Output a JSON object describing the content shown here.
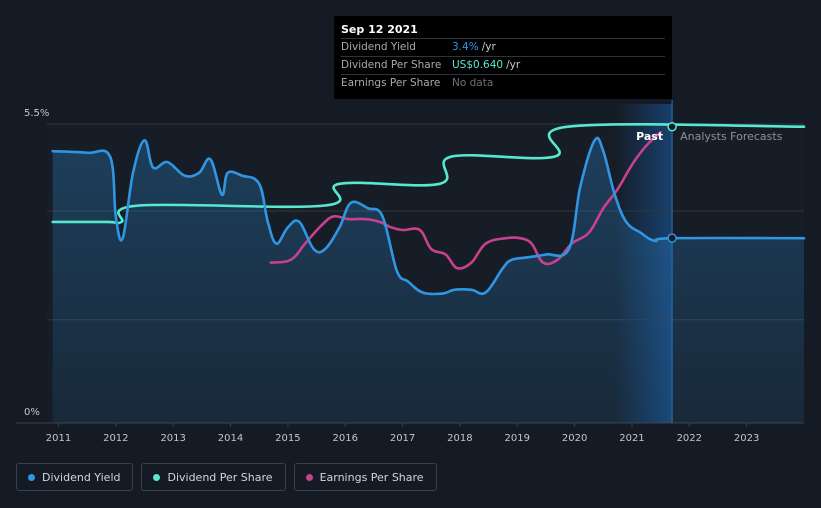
{
  "chart_data": {
    "type": "line",
    "x_axis": {
      "min": 2010.8,
      "max": 2024.0,
      "ticks": [
        "2011",
        "2012",
        "2013",
        "2014",
        "2015",
        "2016",
        "2017",
        "2018",
        "2019",
        "2020",
        "2021",
        "2022",
        "2023"
      ]
    },
    "y_axis": {
      "min": 0,
      "max": 5.5,
      "ticks": [
        "0%",
        "5.5%"
      ]
    },
    "gridlines": [
      1.9,
      3.9,
      5.5
    ],
    "now": 2021.7,
    "forecast_band_start": 2020.7,
    "region_labels": {
      "past": "Past",
      "forecast": "Analysts Forecasts"
    },
    "series": [
      {
        "key": "dividend_yield",
        "name": "Dividend Yield",
        "color": "#2f96e3",
        "fill": true,
        "points": [
          [
            2010.9,
            5.0
          ],
          [
            2011.5,
            4.97
          ],
          [
            2011.9,
            4.9
          ],
          [
            2012.0,
            3.8
          ],
          [
            2012.12,
            3.4
          ],
          [
            2012.3,
            4.6
          ],
          [
            2012.5,
            5.2
          ],
          [
            2012.65,
            4.7
          ],
          [
            2012.9,
            4.8
          ],
          [
            2013.2,
            4.55
          ],
          [
            2013.45,
            4.6
          ],
          [
            2013.65,
            4.85
          ],
          [
            2013.85,
            4.2
          ],
          [
            2013.95,
            4.6
          ],
          [
            2014.2,
            4.55
          ],
          [
            2014.5,
            4.4
          ],
          [
            2014.65,
            3.7
          ],
          [
            2014.8,
            3.3
          ],
          [
            2015.0,
            3.6
          ],
          [
            2015.2,
            3.7
          ],
          [
            2015.45,
            3.2
          ],
          [
            2015.65,
            3.2
          ],
          [
            2015.9,
            3.6
          ],
          [
            2016.1,
            4.05
          ],
          [
            2016.4,
            3.95
          ],
          [
            2016.65,
            3.8
          ],
          [
            2016.9,
            2.8
          ],
          [
            2017.1,
            2.6
          ],
          [
            2017.35,
            2.4
          ],
          [
            2017.7,
            2.38
          ],
          [
            2017.9,
            2.45
          ],
          [
            2018.2,
            2.45
          ],
          [
            2018.45,
            2.4
          ],
          [
            2018.75,
            2.85
          ],
          [
            2018.9,
            3.0
          ],
          [
            2019.2,
            3.05
          ],
          [
            2019.5,
            3.1
          ],
          [
            2019.9,
            3.2
          ],
          [
            2020.1,
            4.35
          ],
          [
            2020.35,
            5.2
          ],
          [
            2020.5,
            5.0
          ],
          [
            2020.7,
            4.2
          ],
          [
            2020.9,
            3.7
          ],
          [
            2021.15,
            3.5
          ],
          [
            2021.4,
            3.35
          ],
          [
            2021.7,
            3.4
          ],
          [
            2024.0,
            3.4
          ]
        ]
      },
      {
        "key": "dividend_per_share",
        "name": "Dividend Per Share",
        "color": "#58e8cf",
        "fill": false,
        "points": [
          [
            2010.9,
            3.7
          ],
          [
            2011.85,
            3.7
          ],
          [
            2012.1,
            3.7
          ],
          [
            2012.4,
            4.0
          ],
          [
            2015.65,
            4.0
          ],
          [
            2015.9,
            4.4
          ],
          [
            2017.65,
            4.4
          ],
          [
            2017.85,
            4.9
          ],
          [
            2019.65,
            4.9
          ],
          [
            2019.88,
            5.45
          ],
          [
            2024.0,
            5.45
          ]
        ]
      },
      {
        "key": "earnings_per_share",
        "name": "Earnings Per Share",
        "color": "#c8418e",
        "fill": false,
        "points": [
          [
            2014.7,
            2.95
          ],
          [
            2015.05,
            3.0
          ],
          [
            2015.3,
            3.3
          ],
          [
            2015.6,
            3.65
          ],
          [
            2015.8,
            3.8
          ],
          [
            2016.05,
            3.75
          ],
          [
            2016.35,
            3.75
          ],
          [
            2016.6,
            3.7
          ],
          [
            2016.8,
            3.6
          ],
          [
            2017.0,
            3.55
          ],
          [
            2017.3,
            3.55
          ],
          [
            2017.5,
            3.2
          ],
          [
            2017.75,
            3.1
          ],
          [
            2017.95,
            2.85
          ],
          [
            2018.2,
            2.95
          ],
          [
            2018.45,
            3.3
          ],
          [
            2018.8,
            3.4
          ],
          [
            2019.05,
            3.4
          ],
          [
            2019.25,
            3.3
          ],
          [
            2019.45,
            2.95
          ],
          [
            2019.7,
            3.0
          ],
          [
            2019.95,
            3.3
          ],
          [
            2020.25,
            3.5
          ],
          [
            2020.5,
            3.95
          ],
          [
            2020.75,
            4.3
          ],
          [
            2021.0,
            4.75
          ],
          [
            2021.25,
            5.1
          ],
          [
            2021.5,
            5.35
          ]
        ]
      }
    ]
  },
  "tooltip": {
    "date": "Sep 12 2021",
    "rows": [
      {
        "label": "Dividend Yield",
        "value": "3.4%",
        "unit": "/yr",
        "value_color": "#2f96e3"
      },
      {
        "label": "Dividend Per Share",
        "value": "US$0.640",
        "unit": "/yr",
        "value_color": "#58e8cf"
      },
      {
        "label": "Earnings Per Share",
        "value": "No data",
        "unit": "",
        "value_color": "#6b7078"
      }
    ]
  },
  "legend": [
    {
      "label": "Dividend Yield",
      "color": "#2f96e3"
    },
    {
      "label": "Dividend Per Share",
      "color": "#58e8cf"
    },
    {
      "label": "Earnings Per Share",
      "color": "#c8418e"
    }
  ]
}
